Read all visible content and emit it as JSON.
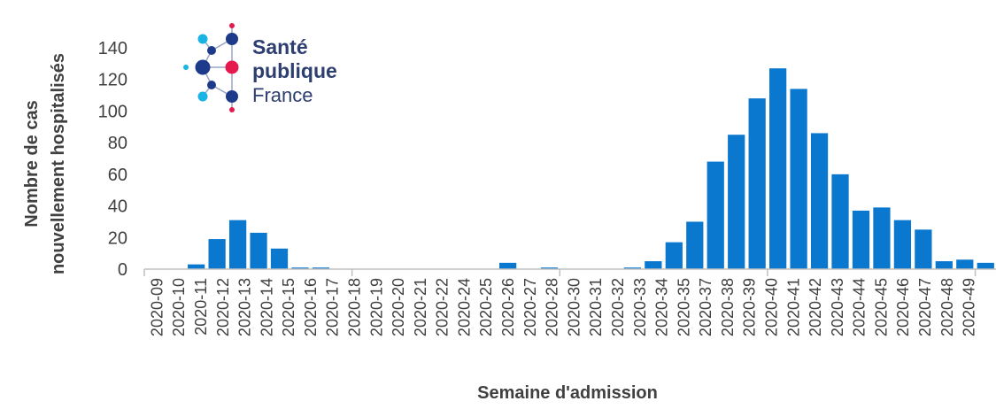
{
  "chart_data": {
    "type": "bar",
    "xlabel": "Semaine d'admission",
    "ylabel_lines": [
      "Nombre de cas",
      "nouvellement hospitalisés"
    ],
    "ylim": [
      0,
      140
    ],
    "yticks": [
      0,
      20,
      40,
      60,
      80,
      100,
      120,
      140
    ],
    "grid": false,
    "bar_color": "#0b78d0",
    "categories": [
      "2020-09",
      "2020-10",
      "2020-11",
      "2020-12",
      "2020-13",
      "2020-14",
      "2020-15",
      "2020-16",
      "2020-17",
      "2020-18",
      "2020-19",
      "2020-20",
      "2020-21",
      "2020-22",
      "2020-23",
      "2020-24",
      "2020-25",
      "2020-26",
      "2020-27",
      "2020-28",
      "2020-29",
      "2020-30",
      "2020-31",
      "2020-32",
      "2020-33",
      "2020-34",
      "2020-35",
      "2020-36",
      "2020-37",
      "2020-38",
      "2020-39",
      "2020-40",
      "2020-41",
      "2020-42",
      "2020-43",
      "2020-44",
      "2020-45",
      "2020-46",
      "2020-47",
      "2020-48",
      "2020-49"
    ],
    "xtick_labels": [
      "2020-09",
      "2020-10",
      "2020-11",
      "2020-12",
      "2020-13",
      "2020-14",
      "2020-15",
      "2020-16",
      "2020-17",
      "2020-18",
      "2020-19",
      "2020-20",
      "2020-21",
      "2020-22",
      "2020-24",
      "2020-25",
      "2020-26",
      "2020-27",
      "2020-28",
      "2020-30",
      "2020-31",
      "2020-32",
      "2020-33",
      "2020-34",
      "2020-35",
      "2020-37",
      "2020-38",
      "2020-39",
      "2020-40",
      "2020-41",
      "2020-42",
      "2020-43",
      "2020-44",
      "2020-45",
      "2020-46",
      "2020-47",
      "2020-48",
      "2020-49"
    ],
    "values": [
      0,
      0,
      3,
      19,
      31,
      23,
      13,
      1,
      1,
      0,
      0,
      0,
      0,
      0,
      0,
      0,
      0,
      4,
      0,
      1,
      0,
      0,
      0,
      1,
      5,
      17,
      30,
      68,
      85,
      108,
      127,
      114,
      86,
      60,
      37,
      39,
      31,
      25,
      5,
      6,
      4
    ]
  },
  "logo": {
    "line1": "Santé",
    "line2": "publique",
    "line3": "France",
    "colors": {
      "navy": "#2d3e70",
      "cyan": "#1ab3e6",
      "pink": "#e6194f",
      "blue": "#1e3a8a"
    }
  }
}
